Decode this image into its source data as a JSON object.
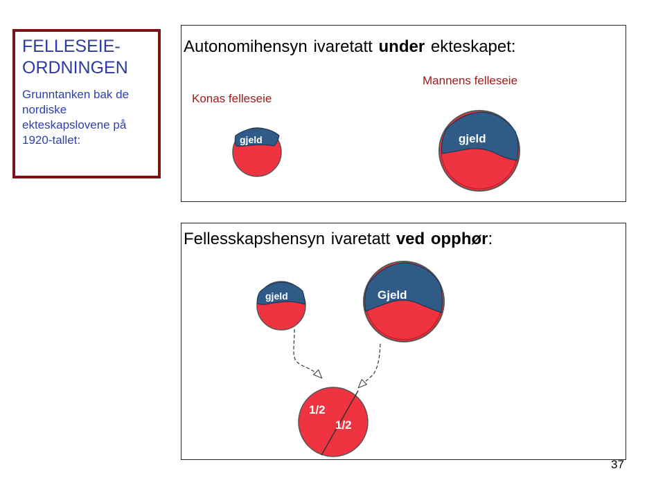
{
  "sidebar": {
    "title_line1": "FELLESEIE-",
    "title_line2": "ORDNINGEN",
    "subtitle": "Grunntanken bak de nordiske ekteskapslovene på 1920-tallet:"
  },
  "top_panel": {
    "heading_pre": "Autonomihensyn ivaretatt ",
    "heading_bold": "under",
    "heading_post": " ekteskapet:",
    "label_wife": "Konas felleseie",
    "label_husband": "Mannens felleseie",
    "debt_small": "gjeld",
    "debt_large": "gjeld"
  },
  "bottom_panel": {
    "heading_pre": "Fellesskapshensyn ivaretatt ",
    "heading_bold": "ved opphør",
    "heading_post": ":",
    "debt_small": "gjeld",
    "debt_large": "Gjeld",
    "half_left": "1/2",
    "half_right": "1/2"
  },
  "page_number": "37",
  "colors": {
    "asset_red": "#ef3340",
    "debt_blue": "#2f5b86",
    "frame_darkred": "#7a1216",
    "title_blue": "#2d3a9e",
    "label_red": "#a01a1a"
  }
}
